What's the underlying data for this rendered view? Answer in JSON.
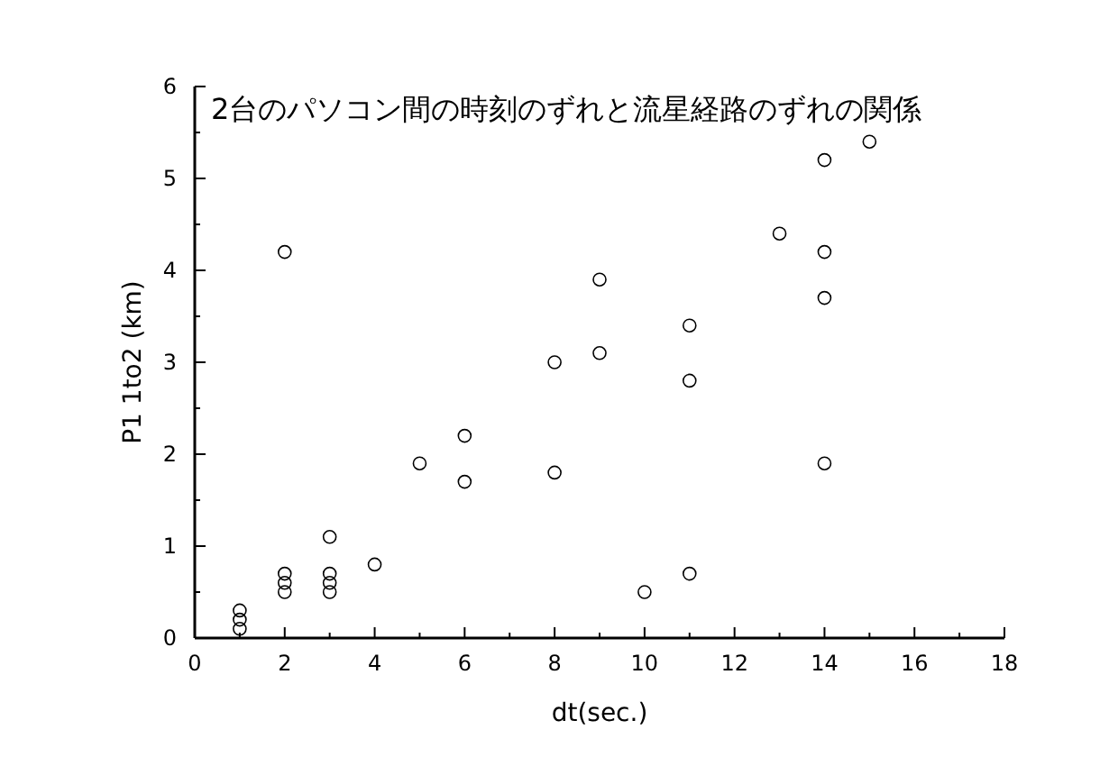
{
  "chart_data": {
    "type": "scatter",
    "title": "2台のパソコン間の時刻のずれと流星経路のずれの関係",
    "xlabel": "dt(sec.)",
    "ylabel": "P1 1to2 (km)",
    "x": [
      1,
      1,
      1,
      2,
      2,
      2,
      2,
      3,
      3,
      3,
      3,
      4,
      5,
      6,
      6,
      8,
      8,
      9,
      9,
      10,
      11,
      11,
      11,
      13,
      14,
      14,
      14,
      14,
      15
    ],
    "series": [
      {
        "color": "#000000",
        "values": [
          0.3,
          0.2,
          0.1,
          4.2,
          0.7,
          0.6,
          0.5,
          1.1,
          0.7,
          0.6,
          0.5,
          0.8,
          1.9,
          2.2,
          1.7,
          3.0,
          1.8,
          3.9,
          3.1,
          0.5,
          3.4,
          2.8,
          0.7,
          4.4,
          5.2,
          4.2,
          3.7,
          1.9,
          5.4
        ]
      }
    ],
    "xlim": [
      0,
      18
    ],
    "ylim": [
      0,
      6
    ],
    "xticks": [
      0,
      2,
      4,
      6,
      8,
      10,
      12,
      14,
      16,
      18
    ],
    "yticks": [
      0,
      1,
      2,
      3,
      4,
      5,
      6
    ],
    "marker": "circle"
  }
}
